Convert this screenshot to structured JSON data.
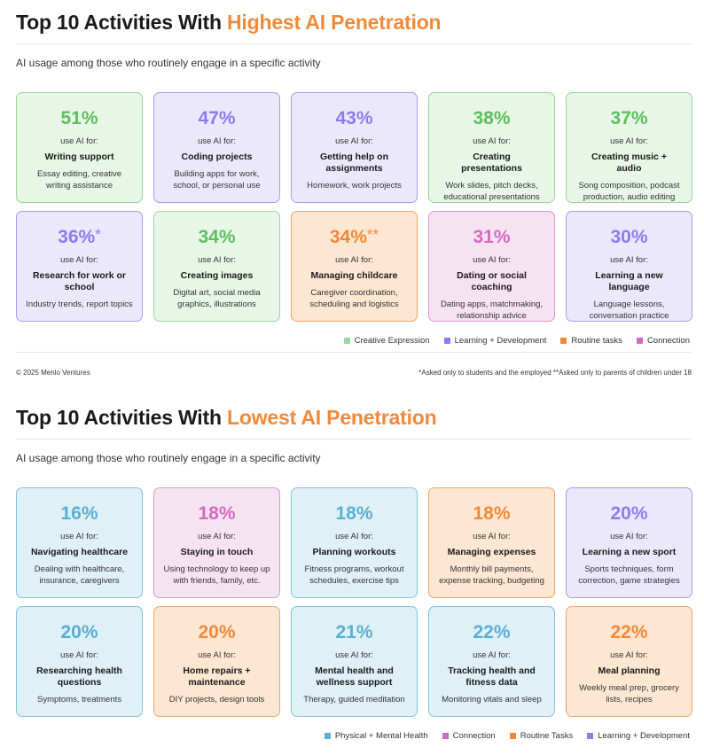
{
  "top": {
    "title_prefix": "Top 10 Activities With ",
    "title_accent": "Highest AI Penetration",
    "subtitle": "AI usage among those who routinely engage in a specific activity",
    "cards": [
      {
        "pct": "51%",
        "star": "",
        "use": "use AI for:",
        "activity": "Writing support",
        "desc": "Essay editing, creative writing assistance",
        "color": "green"
      },
      {
        "pct": "47%",
        "star": "",
        "use": "use AI for:",
        "activity": "Coding projects",
        "desc": "Building apps for work, school, or personal use",
        "color": "purple"
      },
      {
        "pct": "43%",
        "star": "",
        "use": "use AI for:",
        "activity": "Getting help on assignments",
        "desc": "Homework, work projects",
        "color": "purple"
      },
      {
        "pct": "38%",
        "star": "",
        "use": "use AI for:",
        "activity": "Creating presentations",
        "desc": "Work slides, pitch decks, educational presentations",
        "color": "green"
      },
      {
        "pct": "37%",
        "star": "",
        "use": "use AI for:",
        "activity": "Creating music + audio",
        "desc": "Song composition, podcast production, audio editing",
        "color": "green"
      },
      {
        "pct": "36%",
        "star": "*",
        "use": "use AI for:",
        "activity": "Research for work or school",
        "desc": "Industry trends, report topics",
        "color": "purple"
      },
      {
        "pct": "34%",
        "star": "",
        "use": "use AI for:",
        "activity": "Creating images",
        "desc": "Digital art, social media graphics, illustrations",
        "color": "green"
      },
      {
        "pct": "34%",
        "star": "**",
        "use": "use AI for:",
        "activity": "Managing childcare",
        "desc": "Caregiver coordination, scheduling and logistics",
        "color": "orange"
      },
      {
        "pct": "31%",
        "star": "",
        "use": "use AI for:",
        "activity": "Dating or social coaching",
        "desc": "Dating apps, matchmaking, relationship advice",
        "color": "pink"
      },
      {
        "pct": "30%",
        "star": "",
        "use": "use AI for:",
        "activity": "Learning a new language",
        "desc": "Language lessons, conversation practice",
        "color": "purple"
      }
    ],
    "legend": [
      {
        "label": "Creative Expression",
        "color": "#9bd59b"
      },
      {
        "label": "Learning + Development",
        "color": "#8b7cf0"
      },
      {
        "label": "Routine tasks",
        "color": "#f08a3a"
      },
      {
        "label": "Connection",
        "color": "#d26bc0"
      }
    ],
    "copyright": "© 2025 Menlo Ventures",
    "footnote": "*Asked only to students and the employed   **Asked only to parents of children under 18"
  },
  "bottom": {
    "title_prefix": "Top 10 Activities With ",
    "title_accent": "Lowest AI Penetration",
    "subtitle": "AI usage among those who routinely engage in a specific activity",
    "cards": [
      {
        "pct": "16%",
        "star": "",
        "use": "use AI for:",
        "activity": "Navigating healthcare",
        "desc": "Dealing with healthcare, insurance, caregivers",
        "color": "blue"
      },
      {
        "pct": "18%",
        "star": "",
        "use": "use AI for:",
        "activity": "Staying in touch",
        "desc": "Using technology to keep up with friends, family, etc.",
        "color": "pink"
      },
      {
        "pct": "18%",
        "star": "",
        "use": "use AI for:",
        "activity": "Planning workouts",
        "desc": "Fitness programs, workout schedules, exercise tips",
        "color": "blue"
      },
      {
        "pct": "18%",
        "star": "",
        "use": "use AI for:",
        "activity": "Managing expenses",
        "desc": "Monthly bill payments, expense tracking, budgeting",
        "color": "orange"
      },
      {
        "pct": "20%",
        "star": "",
        "use": "use AI for:",
        "activity": "Learning a new sport",
        "desc": "Sports techniques, form correction, game strategies",
        "color": "purple"
      },
      {
        "pct": "20%",
        "star": "",
        "use": "use AI for:",
        "activity": "Researching health questions",
        "desc": "Symptoms, treatments",
        "color": "blue"
      },
      {
        "pct": "20%",
        "star": "",
        "use": "use AI for:",
        "activity": "Home repairs + maintenance",
        "desc": "DIY projects, design tools",
        "color": "orange"
      },
      {
        "pct": "21%",
        "star": "",
        "use": "use AI for:",
        "activity": "Mental health and wellness support",
        "desc": "Therapy, guided meditation",
        "color": "blue"
      },
      {
        "pct": "22%",
        "star": "",
        "use": "use AI for:",
        "activity": "Tracking health and fitness data",
        "desc": "Monitoring vitals and sleep",
        "color": "blue"
      },
      {
        "pct": "22%",
        "star": "",
        "use": "use AI for:",
        "activity": "Meal planning",
        "desc": "Weekly meal prep, grocery lists, recipes",
        "color": "orange"
      }
    ],
    "legend": [
      {
        "label": "Physical + Mental Health",
        "color": "#5aafd2"
      },
      {
        "label": "Connection",
        "color": "#d26bc0"
      },
      {
        "label": "Routine Tasks",
        "color": "#f08a3a"
      },
      {
        "label": "Learning + Development",
        "color": "#8b7cf0"
      }
    ]
  }
}
